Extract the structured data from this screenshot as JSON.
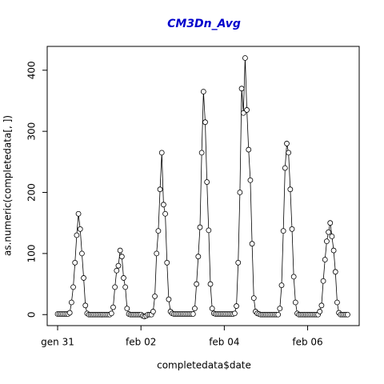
{
  "chart_data": {
    "type": "line",
    "title": "CM3Dn_Avg",
    "title_color": "#0000cc",
    "x_label": "completedata$date",
    "y_label": "as.numeric(completedata[, ])",
    "x": [
      0,
      1,
      2,
      3,
      4,
      5,
      6,
      7,
      8,
      9,
      10,
      11,
      12,
      13,
      14,
      15,
      16,
      17,
      18,
      19,
      20,
      21,
      22,
      23,
      24,
      25,
      26,
      27,
      28,
      29,
      30,
      31,
      32,
      33,
      34,
      35,
      36,
      37,
      38,
      39,
      40,
      41,
      42,
      43,
      44,
      45,
      46,
      47,
      48,
      49,
      50,
      51,
      52,
      53,
      54,
      55,
      56,
      57,
      58,
      59,
      60,
      61,
      62,
      63,
      64,
      65,
      66,
      67,
      68,
      69,
      70,
      71,
      72,
      73,
      74,
      75,
      76,
      77,
      78,
      79,
      80,
      81,
      82,
      83,
      84,
      85,
      86,
      87,
      88,
      89,
      90,
      91,
      92,
      93,
      94,
      95,
      96,
      97,
      98,
      99,
      100,
      101,
      102,
      103,
      104,
      105,
      106,
      107,
      108,
      109,
      110,
      111,
      112,
      113,
      114,
      115,
      116,
      117,
      118,
      119,
      120,
      121,
      122,
      123,
      124,
      125,
      126,
      127,
      128,
      129,
      130,
      131,
      132,
      133,
      134,
      135,
      136,
      137,
      138,
      139,
      140,
      141,
      142,
      143,
      144,
      145,
      146,
      147,
      148,
      149,
      150,
      151,
      152,
      153,
      154,
      155,
      156,
      157,
      158,
      159,
      160,
      161,
      162,
      163,
      164,
      165,
      166,
      167
    ],
    "series": [
      {
        "name": "CM3Dn_Avg",
        "color": "#000000",
        "values": [
          1,
          1,
          1,
          1,
          1,
          1,
          1,
          3,
          20,
          45,
          85,
          130,
          165,
          140,
          100,
          60,
          15,
          2,
          0,
          0,
          0,
          0,
          0,
          0,
          0,
          0,
          0,
          0,
          0,
          0,
          0,
          2,
          12,
          45,
          72,
          80,
          105,
          95,
          60,
          45,
          10,
          1,
          0,
          0,
          0,
          0,
          0,
          0,
          0,
          -2,
          -3,
          -2,
          0,
          0,
          0,
          5,
          30,
          100,
          137,
          205,
          265,
          180,
          165,
          85,
          25,
          5,
          2,
          1,
          1,
          1,
          1,
          1,
          1,
          1,
          1,
          1,
          1,
          1,
          1,
          10,
          50,
          95,
          143,
          265,
          365,
          315,
          217,
          138,
          50,
          10,
          2,
          1,
          1,
          1,
          1,
          1,
          1,
          1,
          1,
          1,
          1,
          1,
          2,
          14,
          85,
          200,
          370,
          330,
          420,
          335,
          270,
          220,
          116,
          27,
          5,
          2,
          1,
          0,
          0,
          0,
          0,
          0,
          0,
          0,
          0,
          0,
          0,
          0,
          10,
          48,
          137,
          240,
          280,
          265,
          205,
          140,
          62,
          20,
          2,
          0,
          0,
          0,
          0,
          0,
          0,
          0,
          0,
          0,
          0,
          0,
          0,
          5,
          15,
          55,
          90,
          120,
          135,
          150,
          128,
          105,
          70,
          20,
          3,
          0,
          0,
          0,
          0,
          0
        ]
      }
    ],
    "xlim": [
      -6,
      173.7
    ],
    "ylim": [
      -18,
      439
    ],
    "xticks": [
      {
        "value": 0,
        "label": "gen 31"
      },
      {
        "value": 48,
        "label": "feb 02"
      },
      {
        "value": 96,
        "label": "feb 04"
      },
      {
        "value": 144,
        "label": "feb 06"
      }
    ],
    "yticks": [
      0,
      100,
      200,
      300,
      400
    ]
  }
}
